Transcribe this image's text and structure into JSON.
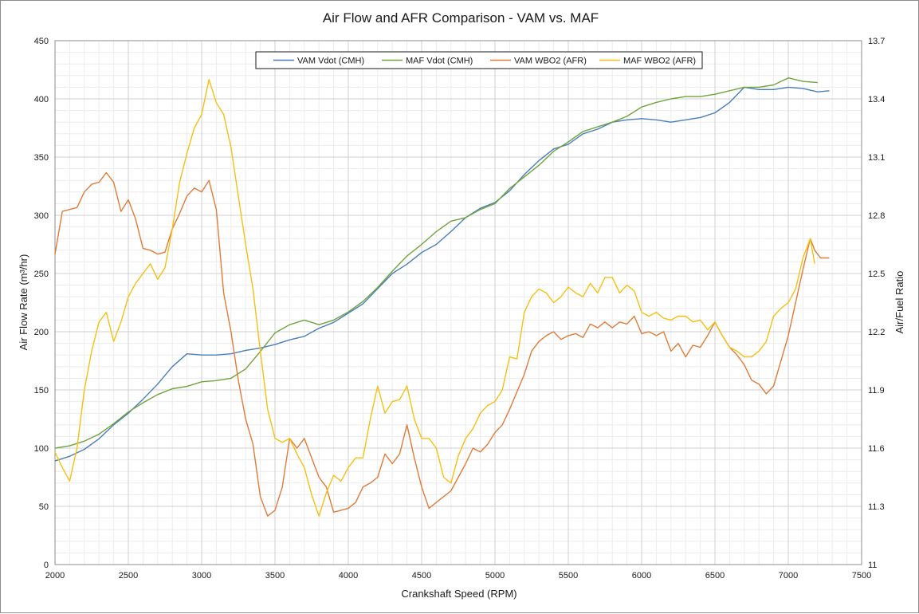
{
  "chart_data": {
    "type": "line",
    "title": "Air Flow and AFR Comparison - VAM vs. MAF",
    "xlabel": "Crankshaft Speed (RPM)",
    "ylabel": "Air Flow Rate (m³/hr)",
    "y2label": "Air/Fuel Ratio",
    "xlim": [
      2000,
      7500
    ],
    "ylim": [
      0,
      450
    ],
    "y2lim": [
      11,
      13.7
    ],
    "x_ticks": [
      "2000",
      "2500",
      "3000",
      "3500",
      "4000",
      "4500",
      "5000",
      "5500",
      "6000",
      "6500",
      "7000",
      "7500"
    ],
    "y_ticks": [
      "0",
      "50",
      "100",
      "150",
      "200",
      "250",
      "300",
      "350",
      "400",
      "450"
    ],
    "y2_ticks": [
      "11",
      "11.3",
      "11.6",
      "11.9",
      "12.2",
      "12.5",
      "12.8",
      "13.1",
      "13.4",
      "13.7"
    ],
    "grid": "on (major and minor)",
    "legend_position": "top-center",
    "series": [
      {
        "name": "VAM Vdot (CMH)",
        "axis": "left",
        "color": "#4a7ebb",
        "x": [
          2000,
          2100,
          2200,
          2300,
          2400,
          2500,
          2600,
          2700,
          2800,
          2900,
          3000,
          3100,
          3200,
          3300,
          3400,
          3500,
          3600,
          3700,
          3800,
          3900,
          4000,
          4100,
          4200,
          4300,
          4400,
          4500,
          4600,
          4700,
          4800,
          4900,
          5000,
          5100,
          5200,
          5300,
          5400,
          5500,
          5600,
          5700,
          5800,
          5900,
          6000,
          6100,
          6200,
          6300,
          6400,
          6500,
          6600,
          6700,
          6800,
          6900,
          7000,
          7100,
          7200,
          7280
        ],
        "values": [
          89,
          93,
          99,
          108,
          120,
          130,
          142,
          155,
          170,
          181,
          180,
          180,
          181,
          184,
          186,
          189,
          193,
          196,
          203,
          208,
          216,
          224,
          237,
          250,
          258,
          268,
          275,
          286,
          298,
          306,
          311,
          321,
          335,
          347,
          357,
          361,
          370,
          374,
          380,
          382,
          383,
          382,
          380,
          382,
          384,
          388,
          397,
          410,
          408,
          408,
          410,
          409,
          406,
          407
        ]
      },
      {
        "name": "MAF Vdot (CMH)",
        "axis": "left",
        "color": "#71a33c",
        "x": [
          2000,
          2100,
          2200,
          2300,
          2400,
          2500,
          2600,
          2700,
          2800,
          2900,
          3000,
          3100,
          3200,
          3300,
          3400,
          3500,
          3600,
          3700,
          3800,
          3900,
          4000,
          4100,
          4200,
          4300,
          4400,
          4500,
          4600,
          4700,
          4800,
          4900,
          5000,
          5100,
          5200,
          5300,
          5400,
          5500,
          5600,
          5700,
          5800,
          5900,
          6000,
          6100,
          6200,
          6300,
          6400,
          6500,
          6600,
          6700,
          6800,
          6900,
          7000,
          7100,
          7200
        ],
        "values": [
          100,
          102,
          106,
          112,
          121,
          131,
          139,
          146,
          151,
          153,
          157,
          158,
          160,
          168,
          183,
          199,
          206,
          210,
          206,
          210,
          217,
          226,
          238,
          252,
          265,
          275,
          286,
          295,
          298,
          305,
          310,
          323,
          333,
          343,
          355,
          363,
          372,
          376,
          380,
          385,
          393,
          397,
          400,
          402,
          402,
          404,
          407,
          410,
          410,
          412,
          418,
          415,
          414
        ]
      },
      {
        "name": "VAM WBO2 (AFR)",
        "axis": "right",
        "color": "#e07b39",
        "x": [
          2000,
          2050,
          2100,
          2150,
          2200,
          2250,
          2300,
          2350,
          2400,
          2450,
          2500,
          2550,
          2600,
          2650,
          2700,
          2750,
          2800,
          2850,
          2900,
          2950,
          3000,
          3050,
          3100,
          3150,
          3200,
          3250,
          3300,
          3350,
          3400,
          3450,
          3500,
          3550,
          3600,
          3650,
          3700,
          3750,
          3800,
          3850,
          3900,
          3950,
          4000,
          4050,
          4100,
          4150,
          4200,
          4250,
          4300,
          4350,
          4400,
          4450,
          4500,
          4550,
          4600,
          4650,
          4700,
          4750,
          4800,
          4850,
          4900,
          4950,
          5000,
          5050,
          5100,
          5150,
          5200,
          5250,
          5300,
          5350,
          5400,
          5450,
          5500,
          5550,
          5600,
          5650,
          5700,
          5750,
          5800,
          5850,
          5900,
          5950,
          6000,
          6050,
          6100,
          6150,
          6200,
          6250,
          6300,
          6350,
          6400,
          6450,
          6500,
          6550,
          6600,
          6650,
          6700,
          6750,
          6800,
          6850,
          6900,
          6950,
          7000,
          7050,
          7100,
          7150,
          7180,
          7220,
          7260,
          7280
        ],
        "values": [
          12.6,
          12.82,
          12.83,
          12.84,
          12.92,
          12.96,
          12.97,
          13.02,
          12.97,
          12.82,
          12.88,
          12.78,
          12.63,
          12.62,
          12.6,
          12.61,
          12.73,
          12.81,
          12.9,
          12.94,
          12.92,
          12.98,
          12.83,
          12.4,
          12.2,
          11.95,
          11.75,
          11.62,
          11.35,
          11.25,
          11.28,
          11.4,
          11.65,
          11.6,
          11.65,
          11.55,
          11.45,
          11.4,
          11.27,
          11.28,
          11.29,
          11.32,
          11.4,
          11.42,
          11.45,
          11.57,
          11.52,
          11.57,
          11.72,
          11.55,
          11.4,
          11.29,
          11.32,
          11.35,
          11.38,
          11.45,
          11.52,
          11.6,
          11.58,
          11.62,
          11.68,
          11.72,
          11.8,
          11.89,
          11.98,
          12.1,
          12.15,
          12.18,
          12.2,
          12.16,
          12.18,
          12.19,
          12.17,
          12.24,
          12.22,
          12.25,
          12.22,
          12.25,
          12.24,
          12.28,
          12.19,
          12.2,
          12.18,
          12.2,
          12.1,
          12.14,
          12.07,
          12.13,
          12.12,
          12.18,
          12.25,
          12.18,
          12.12,
          12.08,
          12.03,
          11.95,
          11.93,
          11.88,
          11.92,
          12.05,
          12.18,
          12.35,
          12.52,
          12.68,
          12.62,
          12.58,
          12.58,
          12.58
        ]
      },
      {
        "name": "MAF WBO2 (AFR)",
        "axis": "right",
        "color": "#f5c013",
        "x": [
          2000,
          2050,
          2100,
          2150,
          2200,
          2250,
          2300,
          2350,
          2400,
          2450,
          2500,
          2550,
          2600,
          2650,
          2700,
          2750,
          2800,
          2850,
          2900,
          2950,
          3000,
          3050,
          3100,
          3150,
          3200,
          3250,
          3300,
          3350,
          3400,
          3450,
          3500,
          3550,
          3600,
          3650,
          3700,
          3750,
          3800,
          3850,
          3900,
          3950,
          4000,
          4050,
          4100,
          4150,
          4200,
          4250,
          4300,
          4350,
          4400,
          4450,
          4500,
          4550,
          4600,
          4650,
          4700,
          4750,
          4800,
          4850,
          4900,
          4950,
          5000,
          5050,
          5100,
          5150,
          5200,
          5250,
          5300,
          5350,
          5400,
          5450,
          5500,
          5550,
          5600,
          5650,
          5700,
          5750,
          5800,
          5850,
          5900,
          5950,
          6000,
          6050,
          6100,
          6150,
          6200,
          6250,
          6300,
          6350,
          6400,
          6450,
          6500,
          6550,
          6600,
          6650,
          6700,
          6750,
          6800,
          6850,
          6900,
          6950,
          7000,
          7050,
          7100,
          7150,
          7180
        ],
        "values": [
          11.58,
          11.5,
          11.43,
          11.6,
          11.9,
          12.1,
          12.25,
          12.3,
          12.15,
          12.25,
          12.38,
          12.45,
          12.5,
          12.55,
          12.47,
          12.53,
          12.73,
          12.97,
          13.12,
          13.25,
          13.32,
          13.5,
          13.38,
          13.32,
          13.15,
          12.9,
          12.65,
          12.42,
          12.1,
          11.8,
          11.65,
          11.63,
          11.65,
          11.57,
          11.5,
          11.36,
          11.25,
          11.37,
          11.46,
          11.43,
          11.5,
          11.55,
          11.55,
          11.75,
          11.92,
          11.78,
          11.84,
          11.85,
          11.92,
          11.75,
          11.65,
          11.65,
          11.6,
          11.45,
          11.42,
          11.56,
          11.65,
          11.7,
          11.78,
          11.82,
          11.84,
          11.9,
          12.07,
          12.06,
          12.3,
          12.38,
          12.42,
          12.4,
          12.35,
          12.38,
          12.43,
          12.4,
          12.38,
          12.45,
          12.4,
          12.48,
          12.48,
          12.4,
          12.44,
          12.41,
          12.3,
          12.28,
          12.3,
          12.27,
          12.26,
          12.28,
          12.28,
          12.25,
          12.26,
          12.21,
          12.25,
          12.18,
          12.12,
          12.1,
          12.07,
          12.07,
          12.1,
          12.15,
          12.28,
          12.32,
          12.35,
          12.42,
          12.58,
          12.68,
          12.55
        ]
      }
    ]
  }
}
